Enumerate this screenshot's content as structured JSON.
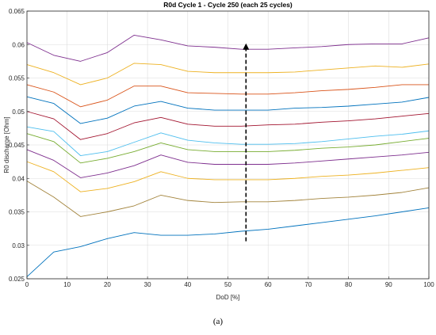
{
  "caption": "(a)",
  "chart_data": {
    "type": "line",
    "title": "R0d Cycle 1 - Cycle 250 (each 25 cycles)",
    "xlabel": "DoD [%]",
    "ylabel": "R0 discharge [Ohm]",
    "xlim": [
      0,
      100
    ],
    "ylim": [
      0.025,
      0.065
    ],
    "xticks": [
      0,
      10,
      20,
      30,
      40,
      50,
      60,
      70,
      80,
      90,
      100
    ],
    "yticks": [
      0.025,
      0.03,
      0.035,
      0.04,
      0.045,
      0.05,
      0.055,
      0.06,
      0.065
    ],
    "ytick_labels": [
      "0.025",
      "0.03",
      "0.035",
      "0.04",
      "0.045",
      "0.05",
      "0.055",
      "0.06",
      "0.065"
    ],
    "grid": true,
    "x": [
      0,
      6.67,
      13.33,
      20,
      26.67,
      33.33,
      40,
      46.67,
      53.33,
      60,
      66.67,
      73.33,
      80,
      86.67,
      93.33,
      100
    ],
    "series": [
      {
        "color": "#0072BD",
        "values": [
          0.0253,
          0.029,
          0.0298,
          0.031,
          0.0319,
          0.0315,
          0.0315,
          0.0317,
          0.0321,
          0.0324,
          0.0329,
          0.0334,
          0.0339,
          0.0344,
          0.035,
          0.0356
        ]
      },
      {
        "color": "#A2833B",
        "values": [
          0.0396,
          0.0372,
          0.0343,
          0.035,
          0.0359,
          0.0375,
          0.0367,
          0.0364,
          0.0365,
          0.0365,
          0.0367,
          0.037,
          0.0372,
          0.0375,
          0.0379,
          0.0386
        ]
      },
      {
        "color": "#EDB120",
        "values": [
          0.0425,
          0.041,
          0.038,
          0.0385,
          0.0395,
          0.041,
          0.04,
          0.0398,
          0.0398,
          0.0398,
          0.04,
          0.0403,
          0.0405,
          0.0408,
          0.0412,
          0.0416
        ]
      },
      {
        "color": "#7E2F8E",
        "values": [
          0.0443,
          0.0427,
          0.0401,
          0.0408,
          0.0419,
          0.0435,
          0.0424,
          0.0421,
          0.0421,
          0.0421,
          0.0423,
          0.0426,
          0.0429,
          0.0432,
          0.0435,
          0.0439
        ]
      },
      {
        "color": "#77AC30",
        "values": [
          0.0467,
          0.0455,
          0.0423,
          0.043,
          0.044,
          0.0453,
          0.0443,
          0.044,
          0.044,
          0.044,
          0.0442,
          0.0445,
          0.0447,
          0.045,
          0.0455,
          0.046
        ]
      },
      {
        "color": "#4DBEEE",
        "values": [
          0.0477,
          0.047,
          0.0434,
          0.044,
          0.0454,
          0.0468,
          0.0457,
          0.0453,
          0.0451,
          0.0451,
          0.0452,
          0.0455,
          0.0459,
          0.0463,
          0.0466,
          0.0471
        ]
      },
      {
        "color": "#A2142F",
        "values": [
          0.05,
          0.0489,
          0.0458,
          0.0467,
          0.0483,
          0.0491,
          0.0481,
          0.0478,
          0.0478,
          0.048,
          0.0481,
          0.0484,
          0.0486,
          0.0489,
          0.0493,
          0.0497
        ]
      },
      {
        "color": "#0072BD",
        "values": [
          0.0522,
          0.0512,
          0.0482,
          0.049,
          0.0508,
          0.0515,
          0.0505,
          0.0502,
          0.0502,
          0.0502,
          0.0505,
          0.0506,
          0.0508,
          0.0511,
          0.0514,
          0.0521
        ]
      },
      {
        "color": "#D95319",
        "values": [
          0.054,
          0.0529,
          0.0507,
          0.0517,
          0.0538,
          0.0538,
          0.0528,
          0.0527,
          0.0526,
          0.0526,
          0.0528,
          0.0531,
          0.0533,
          0.0536,
          0.054,
          0.054
        ]
      },
      {
        "color": "#EDB120",
        "values": [
          0.057,
          0.0558,
          0.054,
          0.055,
          0.0572,
          0.057,
          0.056,
          0.0558,
          0.0558,
          0.0558,
          0.0559,
          0.0562,
          0.0565,
          0.0568,
          0.0566,
          0.0571
        ]
      },
      {
        "color": "#7E2F8E",
        "values": [
          0.0603,
          0.0584,
          0.0575,
          0.0588,
          0.0614,
          0.0607,
          0.0598,
          0.0596,
          0.0593,
          0.0593,
          0.0595,
          0.0597,
          0.06,
          0.0601,
          0.0601,
          0.061
        ]
      }
    ],
    "annotations": [
      {
        "type": "arrow",
        "style": "dashed",
        "color": "#000000",
        "from": {
          "x": 54.5,
          "y": 0.0306
        },
        "to": {
          "x": 54.5,
          "y": 0.0597
        }
      }
    ]
  }
}
